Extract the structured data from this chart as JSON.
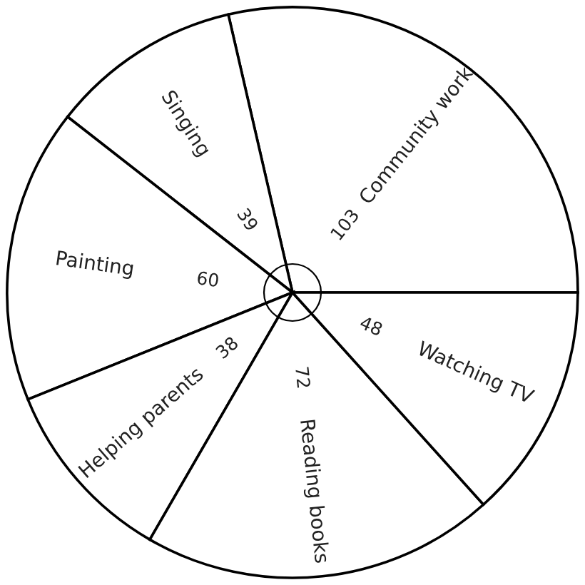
{
  "chart_data": {
    "type": "pie",
    "categories": [
      "Community work",
      "Singing",
      "Painting",
      "Helping parents",
      "Reading books",
      "Watching TV"
    ],
    "values": [
      103,
      39,
      60,
      38,
      72,
      48
    ],
    "colors": [
      "#ffffff",
      "#ffffff",
      "#ffffff",
      "#ffffff",
      "#ffffff",
      "#ffffff"
    ],
    "data_labels": true
  }
}
